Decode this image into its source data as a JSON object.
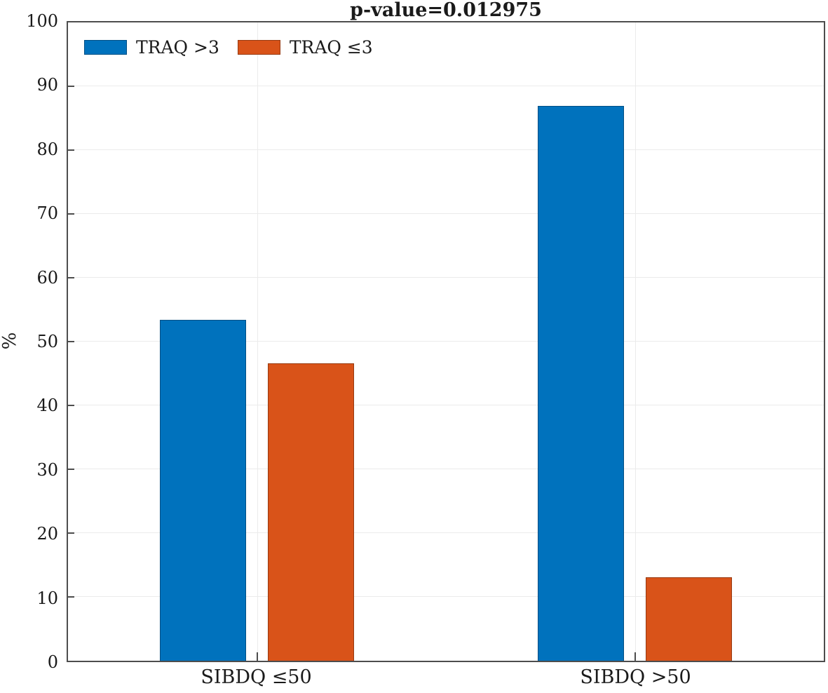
{
  "chart_data": {
    "type": "bar",
    "title": "p-value=0.012975",
    "xlabel": "",
    "ylabel": "%",
    "categories": [
      "SIBDQ ≤50",
      "SIBDQ >50"
    ],
    "series": [
      {
        "name": "TRAQ >3",
        "color": "#0072BD",
        "values": [
          53.4,
          86.9
        ]
      },
      {
        "name": "TRAQ ≤3",
        "color": "#D95319",
        "values": [
          46.6,
          13.1
        ]
      }
    ],
    "ylim": [
      0,
      100
    ],
    "yticks": [
      0,
      10,
      20,
      30,
      40,
      50,
      60,
      70,
      80,
      90,
      100
    ],
    "grid": true,
    "grid_axes": "both",
    "legend_position": "top-left",
    "bar_width_units": 0.2286,
    "bar_center_offsets_units": [
      -0.1429,
      0.1429
    ]
  },
  "colors": {
    "bar_blue": "#0072BD",
    "bar_orange": "#D95319",
    "axis": "#4d4d4d",
    "grid": "#ebebeb",
    "text": "#1a1a1a",
    "background": "#ffffff"
  }
}
